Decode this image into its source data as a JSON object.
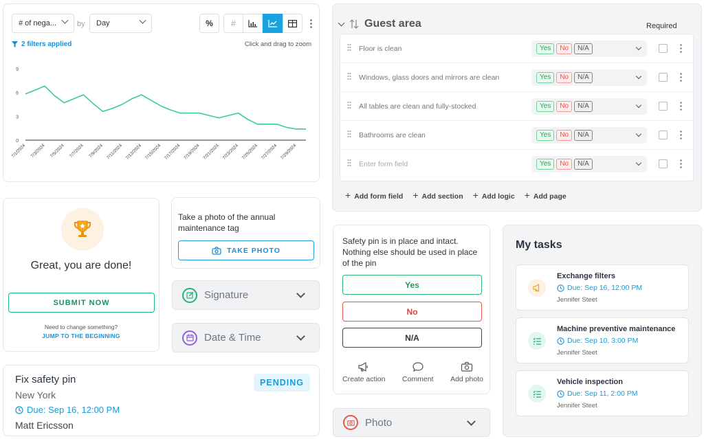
{
  "chart": {
    "metric_select": "# of nega...",
    "by_label": "by",
    "period_select": "Day",
    "tool_percent": "%",
    "tool_hash": "#",
    "filters_text": "2 filters applied",
    "zoom_hint": "Click and drag to zoom"
  },
  "chart_data": {
    "type": "line",
    "x": [
      "7/1/2024",
      "7/2/2024",
      "7/3/2024",
      "7/4/2024",
      "7/5/2024",
      "7/6/2024",
      "7/7/2024",
      "7/8/2024",
      "7/9/2024",
      "7/10/2024",
      "7/11/2024",
      "7/12/2024",
      "7/13/2024",
      "7/14/2024",
      "7/15/2024",
      "7/16/2024",
      "7/17/2024",
      "7/18/2024",
      "7/19/2024",
      "7/20/2024",
      "7/21/2024",
      "7/22/2024",
      "7/23/2024",
      "7/24/2024",
      "7/25/2024",
      "7/26/2024",
      "7/27/2024",
      "7/28/2024",
      "7/29/2024",
      "7/30/2024"
    ],
    "tick_labels": [
      "7/1/2024",
      "7/3/2024",
      "7/5/2024",
      "7/7/2024",
      "7/9/2024",
      "7/11/2024",
      "7/13/2024",
      "7/15/2024",
      "7/17/2024",
      "7/19/2024",
      "7/21/2024",
      "7/23/2024",
      "7/25/2024",
      "7/27/2024",
      "7/29/2024"
    ],
    "values": [
      5.8,
      6.3,
      6.8,
      5.6,
      4.7,
      5.2,
      5.7,
      4.6,
      3.6,
      4.0,
      4.5,
      5.2,
      5.7,
      5.0,
      4.3,
      3.8,
      3.4,
      3.4,
      3.4,
      3.1,
      2.8,
      3.1,
      3.4,
      2.6,
      2.0,
      2.0,
      2.0,
      1.6,
      1.4,
      1.4
    ],
    "yticks": [
      0,
      3,
      6,
      9
    ],
    "ylim": [
      0,
      9.5
    ],
    "color": "#3cc9a0",
    "grid": false
  },
  "done": {
    "title": "Great, you are done!",
    "submit": "SUBMIT NOW",
    "need_change": "Need to change something?",
    "jump": "JUMP TO THE BEGINNING"
  },
  "tag": {
    "text": "Take a photo of the annual maintenance tag",
    "button": "TAKE PHOTO"
  },
  "signature": {
    "label": "Signature"
  },
  "datetime": {
    "label": "Date & Time"
  },
  "photo": {
    "label": "Photo"
  },
  "task": {
    "title": "Fix safety pin",
    "location": "New York",
    "due": "Due: Sep 16, 12:00 PM",
    "user": "Matt Ericsson",
    "status": "PENDING"
  },
  "guest": {
    "title": "Guest area",
    "required_label": "Required",
    "rows": [
      {
        "label": "Floor is clean"
      },
      {
        "label": "Windows, glass doors and mirrors are clean"
      },
      {
        "label": "All tables are clean and fully-stocked"
      },
      {
        "label": "Bathrooms are clean"
      },
      {
        "label": "Enter form field"
      }
    ],
    "chips": {
      "yes": "Yes",
      "no": "No",
      "na": "N/A"
    },
    "actions": [
      "Add form field",
      "Add section",
      "Add logic",
      "Add page"
    ]
  },
  "pin": {
    "question": "Safety pin is in place and intact. Nothing else should be used in place of the pin",
    "yes": "Yes",
    "no": "No",
    "na": "N/A",
    "actions": [
      "Create action",
      "Comment",
      "Add photo"
    ]
  },
  "mytasks": {
    "title": "My tasks",
    "items": [
      {
        "title": "Exchange filters",
        "due": "Due: Sep 16, 12:00 PM",
        "user": "Jennifer Steet",
        "icon": "megaphone-icon",
        "color": "#f5a623"
      },
      {
        "title": "Machine preventive maintenance",
        "due": "Due: Sep 10, 3:00 PM",
        "user": "Jennifer Steet",
        "icon": "checklist-icon",
        "color": "#23b07a"
      },
      {
        "title": "Vehicle inspection",
        "due": "Due: Sep 11, 2:00 PM",
        "user": "Jennifer Steet",
        "icon": "checklist-icon",
        "color": "#23b07a"
      }
    ]
  }
}
